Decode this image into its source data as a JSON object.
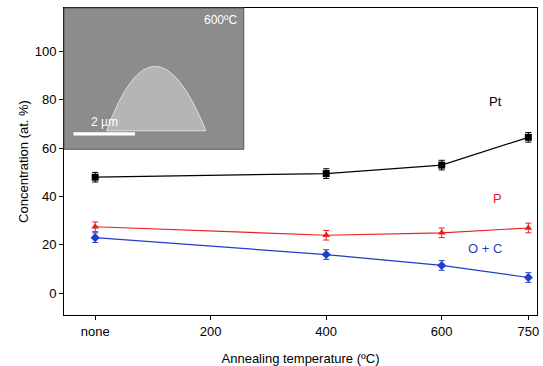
{
  "chart_data": {
    "type": "line",
    "x_label": "Annealing temperature (ºC)",
    "y_label": "Concentration (at. %)",
    "x": [
      0,
      400,
      600,
      750
    ],
    "series": [
      {
        "name": "Pt",
        "color": "#000000",
        "marker": "square",
        "line_style": "solid",
        "values": [
          48,
          49.5,
          53,
          64.5
        ],
        "errors": [
          2,
          2,
          2,
          2
        ]
      },
      {
        "name": "P",
        "color": "#e8201e",
        "marker": "triangle-up",
        "line_style": "solid",
        "values": [
          27.5,
          24,
          25,
          27
        ],
        "errors": [
          2,
          2,
          2,
          2
        ]
      },
      {
        "name": "O + C",
        "color": "#1f3fc8",
        "marker": "diamond",
        "line_style": "solid",
        "values": [
          23,
          16,
          11.5,
          6.5
        ],
        "errors": [
          2,
          2,
          2,
          2
        ]
      }
    ],
    "xlim": [
      -54,
      765
    ],
    "ylim": [
      -9,
      118
    ],
    "xticks": [
      {
        "value": 0,
        "label": "none"
      },
      200,
      400,
      600,
      750
    ],
    "yticks": [
      0,
      20,
      40,
      60,
      80,
      100
    ],
    "grid": false,
    "annotations": [
      "600ºC",
      "2 µm"
    ]
  }
}
